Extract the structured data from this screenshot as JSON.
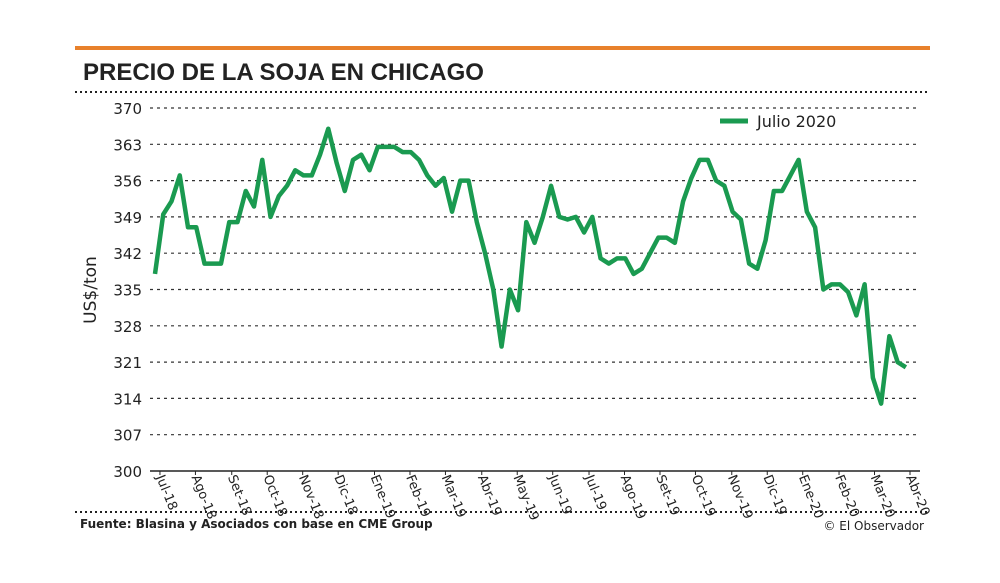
{
  "chart_data": {
    "type": "line",
    "title": "PRECIO DE LA SOJA EN CHICAGO",
    "y_label": "US$/ton",
    "source": "Fuente: Blasina y Asociados con base en CME Group",
    "credit": "© El Observador",
    "legend": "upper right",
    "grid": true,
    "ylim": [
      300,
      370
    ],
    "yticks": [
      300,
      307,
      314,
      321,
      328,
      335,
      342,
      349,
      356,
      363,
      370
    ],
    "xlim": [
      0,
      91.5
    ],
    "xticks": [
      {
        "value": 0.6,
        "label": "Jul-18"
      },
      {
        "value": 4.9,
        "label": "Ago-18"
      },
      {
        "value": 9.3,
        "label": "Set-18"
      },
      {
        "value": 13.6,
        "label": "Oct-18"
      },
      {
        "value": 17.9,
        "label": "Nov-18"
      },
      {
        "value": 22.2,
        "label": "Dic-18"
      },
      {
        "value": 26.6,
        "label": "Ene-19"
      },
      {
        "value": 30.9,
        "label": "Feb-19"
      },
      {
        "value": 35.2,
        "label": "Mar-19"
      },
      {
        "value": 39.6,
        "label": "Abr-19"
      },
      {
        "value": 43.9,
        "label": "May-19"
      },
      {
        "value": 48.2,
        "label": "Jun-19"
      },
      {
        "value": 52.6,
        "label": "Jul-19"
      },
      {
        "value": 56.9,
        "label": "Ago-19"
      },
      {
        "value": 61.2,
        "label": "Set-19"
      },
      {
        "value": 65.5,
        "label": "Oct-19"
      },
      {
        "value": 69.9,
        "label": "Nov-19"
      },
      {
        "value": 74.2,
        "label": "Dic-19"
      },
      {
        "value": 78.5,
        "label": "Ene-20"
      },
      {
        "value": 82.9,
        "label": "Feb-20"
      },
      {
        "value": 87.2,
        "label": "Mar-20"
      },
      {
        "value": 91.5,
        "label": "Abr-20"
      }
    ],
    "x": [
      0,
      1,
      2,
      3,
      4,
      5,
      6,
      7,
      8,
      9,
      10,
      11,
      12,
      13,
      14,
      15,
      16,
      17,
      18,
      19,
      20,
      21,
      22,
      23,
      24,
      25,
      26,
      27,
      28,
      29,
      30,
      31,
      32,
      33,
      34,
      35,
      36,
      37,
      38,
      39,
      40,
      41,
      42,
      43,
      44,
      45,
      46,
      47,
      48,
      49,
      50,
      51,
      52,
      53,
      54,
      55,
      56,
      57,
      58,
      59,
      60,
      61,
      62,
      63,
      64,
      65,
      66,
      67,
      68,
      69,
      70,
      71,
      72,
      73,
      74,
      75,
      76,
      77,
      78,
      79,
      80,
      81,
      82,
      83,
      84,
      85,
      86,
      87,
      88,
      89,
      90,
      91
    ],
    "series": [
      {
        "name": "Julio 2020",
        "color": "#1a9a50",
        "values": [
          338,
          349.5,
          352,
          357,
          347,
          347,
          340,
          340,
          340,
          348,
          348,
          354,
          351,
          360,
          349,
          353,
          355,
          358,
          357,
          357,
          361,
          366,
          359.5,
          354,
          360,
          361,
          358,
          362.5,
          362.5,
          362.5,
          361.5,
          361.5,
          360,
          357,
          355,
          356.5,
          350,
          356,
          356,
          348,
          342,
          335,
          324,
          335,
          331,
          348,
          344,
          349,
          355,
          349,
          348.5,
          349,
          346,
          349,
          341,
          340,
          341,
          341,
          338,
          339,
          342,
          345,
          345,
          344,
          352,
          356.5,
          360,
          360,
          356,
          355,
          350,
          348.5,
          340,
          339,
          344.5,
          354,
          354,
          357,
          360,
          350,
          347,
          335,
          336,
          336,
          334.5,
          330,
          336,
          318,
          313,
          326,
          321,
          320
        ]
      }
    ]
  }
}
